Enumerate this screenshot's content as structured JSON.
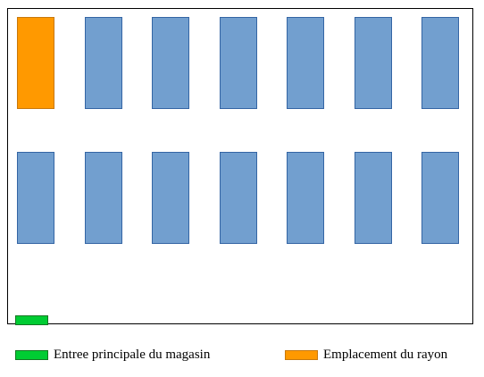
{
  "colors": {
    "shelf": "#729fcf",
    "shelf_border": "#3465a4",
    "highlight": "#ff9900",
    "highlight_border": "#c8780c",
    "entrance": "#00cc33",
    "entrance_border": "#127622"
  },
  "store_map": {
    "rows": [
      {
        "shelves": [
          "shelf",
          "shelf",
          "shelf",
          "shelf",
          "shelf",
          "shelf",
          "shelf"
        ]
      },
      {
        "shelves": [
          "shelf",
          "shelf",
          "shelf",
          "shelf",
          "shelf",
          "shelf",
          "shelf"
        ]
      }
    ],
    "highlighted_shelf": {
      "row": 0,
      "index": 0
    }
  },
  "legend": {
    "entrance_label": "Entree principale du magasin",
    "location_label": "Emplacement du rayon"
  }
}
